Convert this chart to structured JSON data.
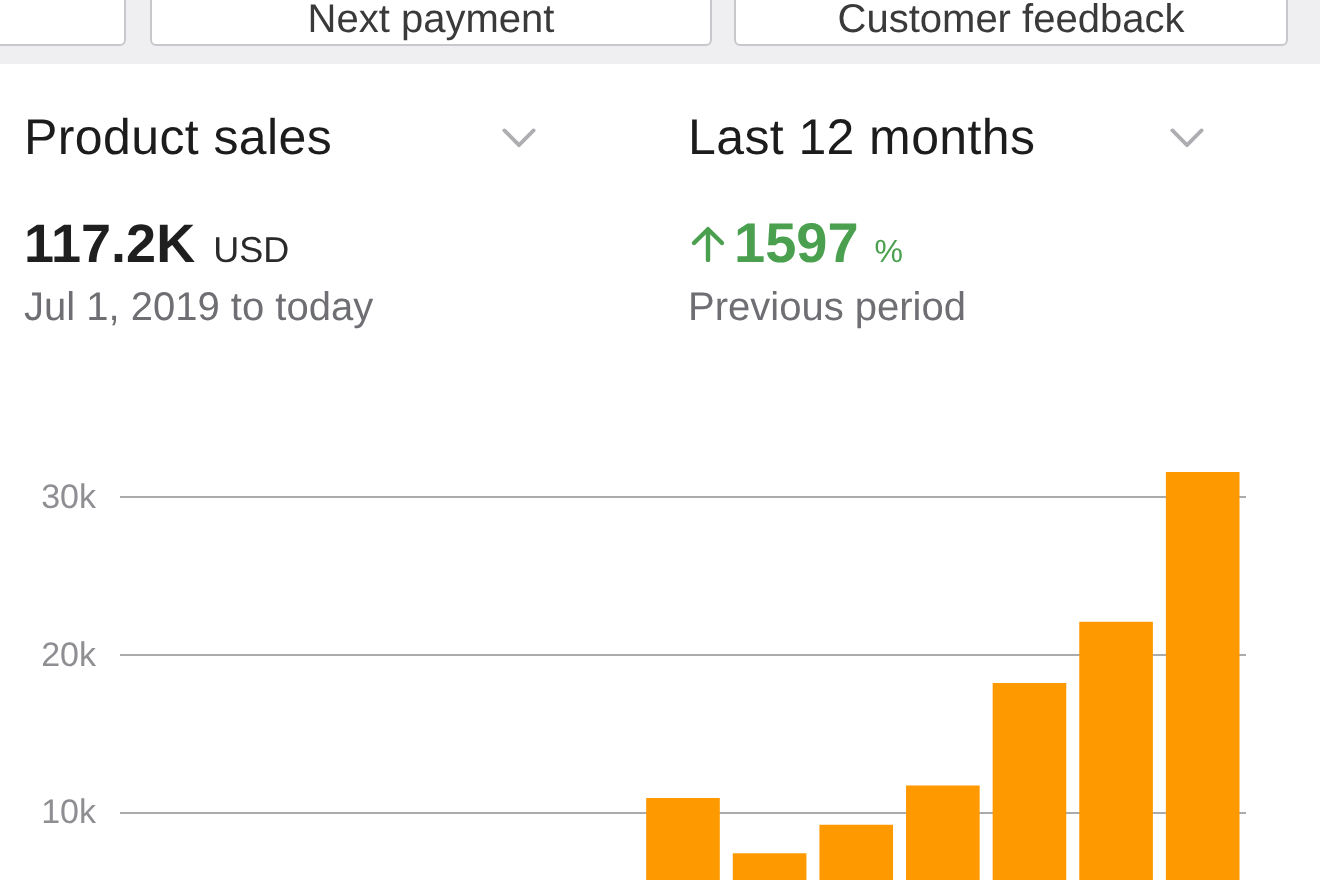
{
  "chart_data": {
    "type": "bar",
    "title": "Product sales",
    "subtitle": "Last 12 months",
    "annotations": [
      "Next payment",
      "Customer feedback",
      "117.2K",
      "USD",
      "Jul 1, 2019 to today",
      "1597",
      "%",
      "Previous period"
    ],
    "categories": [
      null,
      null,
      null,
      null,
      null,
      null,
      null,
      null,
      null,
      null,
      null,
      null,
      null
    ],
    "values": [
      null,
      null,
      null,
      null,
      null,
      null,
      10900,
      7400,
      9200,
      11700,
      18200,
      22100,
      31600
    ],
    "color": "#ff9900",
    "ylim": [
      5700,
      31600
    ],
    "yticks": [
      {
        "value": 10000,
        "label": "10k"
      },
      {
        "value": 20000,
        "label": "20k"
      },
      {
        "value": 30000,
        "label": "30k"
      }
    ],
    "grid": "y",
    "tick_labels": "y"
  }
}
